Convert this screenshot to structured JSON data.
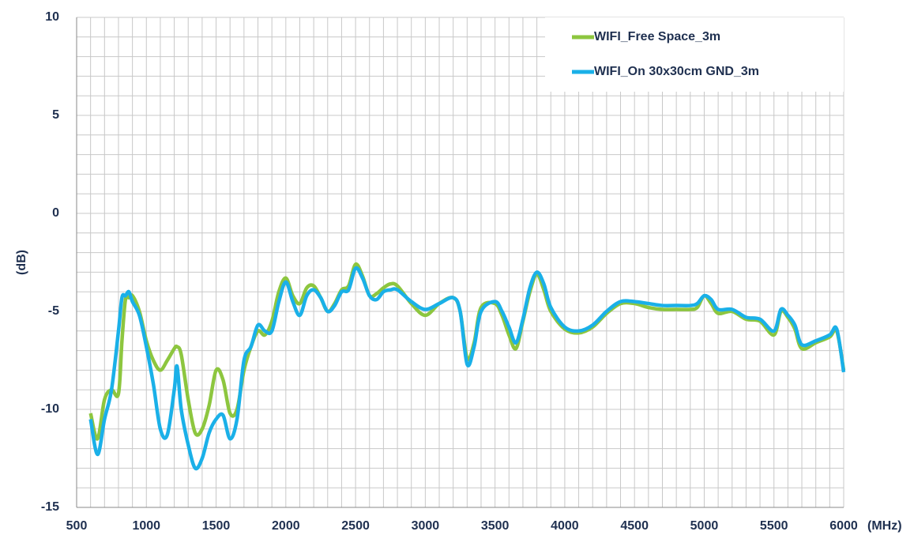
{
  "chart_data": {
    "type": "line",
    "x": [
      600,
      650,
      700,
      750,
      800,
      825,
      850,
      875,
      900,
      950,
      1000,
      1050,
      1100,
      1150,
      1200,
      1220,
      1250,
      1300,
      1350,
      1400,
      1450,
      1500,
      1550,
      1600,
      1650,
      1700,
      1750,
      1800,
      1850,
      1900,
      1950,
      2000,
      2050,
      2100,
      2150,
      2200,
      2250,
      2300,
      2350,
      2400,
      2450,
      2500,
      2550,
      2600,
      2650,
      2700,
      2750,
      2800,
      2900,
      3000,
      3100,
      3200,
      3250,
      3300,
      3350,
      3400,
      3500,
      3550,
      3600,
      3650,
      3700,
      3750,
      3800,
      3850,
      3900,
      4000,
      4100,
      4200,
      4300,
      4400,
      4500,
      4600,
      4700,
      4800,
      4900,
      4950,
      5000,
      5050,
      5100,
      5200,
      5300,
      5400,
      5500,
      5550,
      5600,
      5650,
      5700,
      5800,
      5900,
      5950,
      6000
    ],
    "series": [
      {
        "name": "WIFI_Free Space_3m",
        "color": "#8dc63f",
        "values": [
          -10.2,
          -11.5,
          -9.5,
          -9.0,
          -9.2,
          -6.5,
          -4.4,
          -4.3,
          -4.2,
          -5.0,
          -6.5,
          -7.5,
          -8.0,
          -7.5,
          -6.9,
          -6.8,
          -7.2,
          -9.5,
          -11.2,
          -11.0,
          -9.8,
          -8.0,
          -8.5,
          -10.2,
          -10.0,
          -8.0,
          -6.8,
          -6.0,
          -6.2,
          -5.5,
          -4.0,
          -3.3,
          -4.2,
          -4.6,
          -3.8,
          -3.7,
          -4.3,
          -5.0,
          -4.6,
          -3.9,
          -3.7,
          -2.6,
          -3.2,
          -4.2,
          -4.1,
          -3.8,
          -3.6,
          -3.7,
          -4.6,
          -5.2,
          -4.6,
          -4.3,
          -5.0,
          -7.4,
          -6.6,
          -4.8,
          -4.6,
          -5.2,
          -6.2,
          -6.9,
          -5.5,
          -4.0,
          -3.1,
          -3.9,
          -5.0,
          -5.9,
          -6.1,
          -5.8,
          -5.1,
          -4.6,
          -4.6,
          -4.8,
          -4.9,
          -4.9,
          -4.9,
          -4.8,
          -4.2,
          -4.6,
          -5.1,
          -5.0,
          -5.4,
          -5.5,
          -6.2,
          -5.0,
          -5.3,
          -5.9,
          -6.9,
          -6.6,
          -6.3,
          -6.0,
          -8.0
        ]
      },
      {
        "name": "WIFI_On 30x30cm GND_3m",
        "color": "#1ab0e8",
        "values": [
          -10.5,
          -12.3,
          -10.5,
          -9.0,
          -6.0,
          -4.3,
          -4.2,
          -4.0,
          -4.5,
          -5.2,
          -6.8,
          -8.7,
          -11.0,
          -11.3,
          -9.0,
          -7.8,
          -10.0,
          -11.8,
          -13.0,
          -12.5,
          -11.2,
          -10.5,
          -10.3,
          -11.5,
          -10.5,
          -7.5,
          -6.8,
          -5.7,
          -6.0,
          -6.0,
          -4.5,
          -3.5,
          -4.5,
          -5.2,
          -4.2,
          -3.9,
          -4.3,
          -5.0,
          -4.7,
          -4.0,
          -3.9,
          -2.8,
          -3.3,
          -4.2,
          -4.4,
          -4.0,
          -3.9,
          -3.9,
          -4.5,
          -4.9,
          -4.6,
          -4.3,
          -5.0,
          -7.7,
          -6.8,
          -5.0,
          -4.5,
          -5.0,
          -5.8,
          -6.6,
          -5.4,
          -3.8,
          -3.0,
          -3.6,
          -4.8,
          -5.8,
          -6.0,
          -5.7,
          -5.0,
          -4.5,
          -4.5,
          -4.6,
          -4.7,
          -4.7,
          -4.7,
          -4.6,
          -4.2,
          -4.4,
          -4.9,
          -4.9,
          -5.3,
          -5.4,
          -6.0,
          -4.9,
          -5.2,
          -5.7,
          -6.7,
          -6.5,
          -6.2,
          -5.9,
          -8.1
        ]
      }
    ],
    "x_label": "(MHz)",
    "y_label": "(dB)",
    "xlim": [
      500,
      6000
    ],
    "xticks": [
      500,
      1000,
      1500,
      2000,
      2500,
      3000,
      3500,
      4000,
      4500,
      5000,
      5500,
      6000
    ],
    "ylim": [
      -15,
      10
    ],
    "yticks": [
      -15,
      -10,
      -5,
      0,
      5,
      10
    ],
    "grid": true,
    "minor_divisions": 5,
    "legend": "upper right"
  }
}
